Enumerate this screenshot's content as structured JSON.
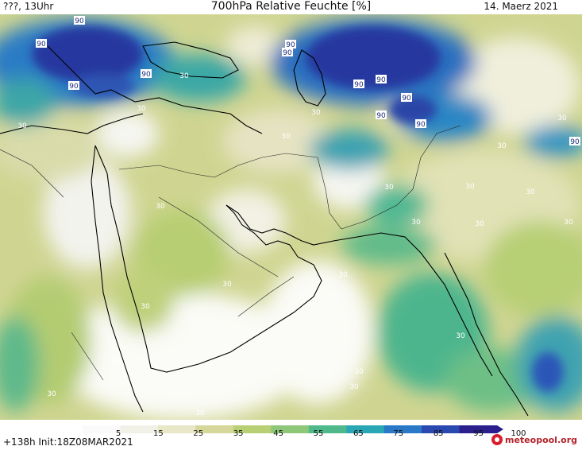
{
  "header": {
    "left": "???, 13Uhr",
    "title": "700hPa Relative Feuchte [%]",
    "date": "14. Maerz 2021"
  },
  "footer": {
    "run_info": "+138h Init:18Z08MAR2021",
    "logo": "meteopool.org"
  },
  "colorbar": {
    "ticks": [
      "5",
      "15",
      "25",
      "35",
      "45",
      "55",
      "65",
      "75",
      "85",
      "95",
      "100"
    ],
    "colors": [
      "#fafafa",
      "#f2f1e8",
      "#e8e7c8",
      "#d5d89a",
      "#b9cf73",
      "#8fc779",
      "#4fb98c",
      "#2aa7b5",
      "#2a79c7",
      "#2948b0",
      "#2a1f8c"
    ]
  },
  "map_labels": {
    "values": [
      "90",
      "90",
      "90",
      "90",
      "90",
      "90",
      "90",
      "90",
      "90",
      "90",
      "90",
      "90",
      "90",
      "30",
      "30",
      "30",
      "30",
      "30",
      "30",
      "30",
      "30",
      "30",
      "30",
      "30",
      "30",
      "30",
      "30",
      "30",
      "30",
      "30",
      "30",
      "30",
      "30",
      "30",
      "30",
      "30",
      "30",
      "30",
      "30",
      "30",
      "30"
    ]
  }
}
